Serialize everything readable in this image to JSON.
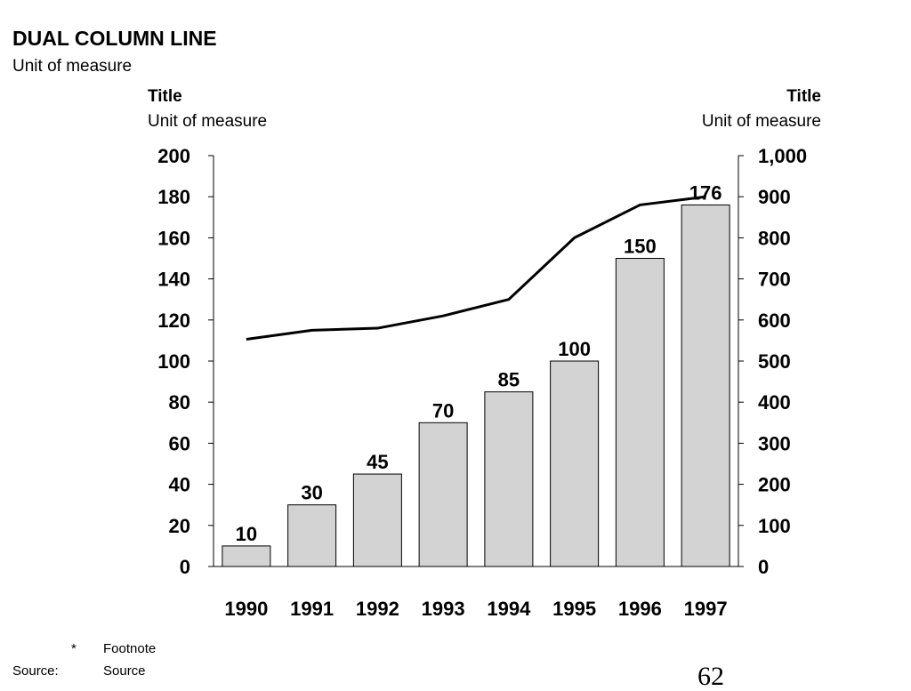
{
  "header": {
    "title": "DUAL COLUMN LINE",
    "subtitle": "Unit of measure"
  },
  "footer": {
    "footnote_marker": "*",
    "footnote": "Footnote",
    "source_label": "Source:",
    "source": "Source",
    "page_number": "62"
  },
  "colors": {
    "bar_fill": "#d3d3d3",
    "bar_stroke": "#000000",
    "line": "#000000"
  },
  "chart_data": {
    "type": "bar",
    "title": "DUAL COLUMN LINE",
    "subtitle": "Unit of measure",
    "categories": [
      "1990",
      "1991",
      "1992",
      "1993",
      "1994",
      "1995",
      "1996",
      "1997"
    ],
    "left_axis": {
      "title": "Title",
      "unit": "Unit of measure",
      "ylim": [
        0,
        200
      ],
      "ticks": [
        "0",
        "20",
        "40",
        "60",
        "80",
        "100",
        "120",
        "140",
        "160",
        "180",
        "200"
      ],
      "tick_values": [
        0,
        20,
        40,
        60,
        80,
        100,
        120,
        140,
        160,
        180,
        200
      ]
    },
    "right_axis": {
      "title": "Title",
      "unit": "Unit of measure",
      "ylim": [
        0,
        1000
      ],
      "ticks": [
        "0",
        "100",
        "200",
        "300",
        "400",
        "500",
        "600",
        "700",
        "800",
        "900",
        "1,000"
      ],
      "tick_values": [
        0,
        100,
        200,
        300,
        400,
        500,
        600,
        700,
        800,
        900,
        1000
      ]
    },
    "series": [
      {
        "type": "bar",
        "axis": "left",
        "values": [
          10,
          30,
          45,
          70,
          85,
          100,
          150,
          176
        ],
        "labels": [
          "10",
          "30",
          "45",
          "70",
          "85",
          "100",
          "150",
          "176"
        ]
      },
      {
        "type": "line",
        "axis": "right",
        "values": [
          553,
          575,
          580,
          610,
          650,
          800,
          880,
          900
        ]
      }
    ],
    "grid": false,
    "legend": "none"
  }
}
